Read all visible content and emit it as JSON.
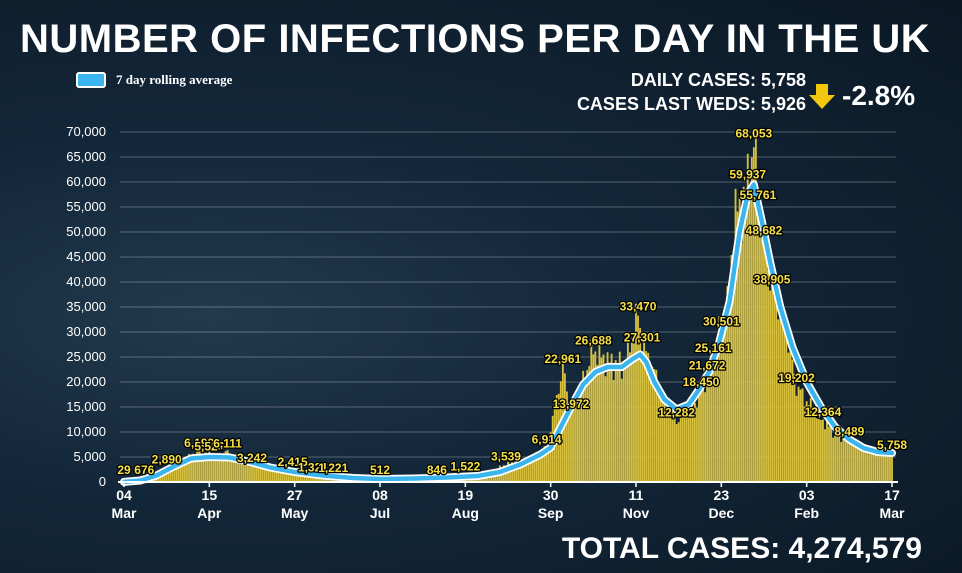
{
  "title": "NUMBER OF INFECTIONS PER DAY IN THE UK",
  "legend": {
    "label": "7 day rolling average",
    "color": "#3ab4ec"
  },
  "stats": {
    "daily": "DAILY CASES: 5,758",
    "last_weds": "CASES LAST WEDS: 5,926",
    "change": "-2.8%",
    "arrow_color": "#f2c80f",
    "arrow_icon": "arrow-down-icon"
  },
  "total": "TOTAL CASES: 4,274,579",
  "colors": {
    "bars": "#d8c13f",
    "avg_line": "#3ab4ec",
    "labels": "#f5e04a"
  },
  "chart_data": {
    "type": "bar",
    "ylim": [
      0,
      70000
    ],
    "y_ticks": [
      0,
      5000,
      10000,
      15000,
      20000,
      25000,
      30000,
      35000,
      40000,
      45000,
      50000,
      55000,
      60000,
      65000,
      70000
    ],
    "y_tick_labels": [
      "0",
      "5,000",
      "10,000",
      "15,000",
      "20,000",
      "25,000",
      "30,000",
      "35,000",
      "40,000",
      "45,000",
      "50,000",
      "55,000",
      "60,000",
      "65,000",
      "70,000"
    ],
    "grid": true,
    "x_ticks": [
      {
        "date": "2020-03-04",
        "day": "04",
        "month": "Mar"
      },
      {
        "date": "2020-04-15",
        "day": "15",
        "month": "Apr"
      },
      {
        "date": "2020-05-27",
        "day": "27",
        "month": "May"
      },
      {
        "date": "2020-07-08",
        "day": "08",
        "month": "Jul"
      },
      {
        "date": "2020-08-19",
        "day": "19",
        "month": "Aug"
      },
      {
        "date": "2020-09-30",
        "day": "30",
        "month": "Sep"
      },
      {
        "date": "2020-11-11",
        "day": "11",
        "month": "Nov"
      },
      {
        "date": "2020-12-23",
        "day": "23",
        "month": "Dec"
      },
      {
        "date": "2021-02-03",
        "day": "03",
        "month": "Feb"
      },
      {
        "date": "2021-03-17",
        "day": "17",
        "month": "Mar"
      }
    ],
    "daily_key_points": [
      [
        "2020-03-04",
        29
      ],
      [
        "2020-03-08",
        80
      ],
      [
        "2020-03-14",
        676
      ],
      [
        "2020-03-20",
        1800
      ],
      [
        "2020-03-25",
        2890
      ],
      [
        "2020-04-03",
        4500
      ],
      [
        "2020-04-10",
        6199
      ],
      [
        "2020-04-15",
        5526
      ],
      [
        "2020-04-20",
        4700
      ],
      [
        "2020-04-24",
        6111
      ],
      [
        "2020-05-01",
        4400
      ],
      [
        "2020-05-06",
        3242
      ],
      [
        "2020-05-15",
        2800
      ],
      [
        "2020-05-26",
        2415
      ],
      [
        "2020-06-05",
        1321
      ],
      [
        "2020-06-15",
        1221
      ],
      [
        "2020-07-08",
        512
      ],
      [
        "2020-08-05",
        846
      ],
      [
        "2020-08-19",
        1522
      ],
      [
        "2020-09-01",
        2000
      ],
      [
        "2020-09-08",
        3539
      ],
      [
        "2020-09-20",
        4500
      ],
      [
        "2020-09-28",
        6914
      ],
      [
        "2020-10-06",
        22961
      ],
      [
        "2020-10-10",
        13972
      ],
      [
        "2020-10-15",
        19000
      ],
      [
        "2020-10-21",
        26688
      ],
      [
        "2020-10-28",
        24000
      ],
      [
        "2020-11-05",
        23000
      ],
      [
        "2020-11-12",
        33470
      ],
      [
        "2020-11-14",
        27301
      ],
      [
        "2020-11-20",
        22000
      ],
      [
        "2020-11-26",
        15000
      ],
      [
        "2020-12-01",
        12282
      ],
      [
        "2020-12-08",
        14000
      ],
      [
        "2020-12-13",
        18450
      ],
      [
        "2020-12-16",
        21672
      ],
      [
        "2020-12-19",
        25161
      ],
      [
        "2020-12-23",
        30501
      ],
      [
        "2020-12-27",
        36000
      ],
      [
        "2020-12-29",
        53000
      ],
      [
        "2021-01-02",
        55000
      ],
      [
        "2021-01-05",
        59937
      ],
      [
        "2021-01-08",
        68053
      ],
      [
        "2021-01-10",
        55761
      ],
      [
        "2021-01-13",
        48682
      ],
      [
        "2021-01-17",
        38905
      ],
      [
        "2021-01-24",
        30000
      ],
      [
        "2021-01-29",
        19202
      ],
      [
        "2021-02-05",
        15000
      ],
      [
        "2021-02-11",
        12364
      ],
      [
        "2021-02-18",
        9500
      ],
      [
        "2021-02-24",
        8489
      ],
      [
        "2021-03-03",
        6500
      ],
      [
        "2021-03-10",
        5900
      ],
      [
        "2021-03-17",
        5758
      ]
    ],
    "rolling_average_points": [
      [
        "2020-03-04",
        30
      ],
      [
        "2020-03-12",
        300
      ],
      [
        "2020-03-20",
        1300
      ],
      [
        "2020-03-28",
        3000
      ],
      [
        "2020-04-06",
        4700
      ],
      [
        "2020-04-15",
        5000
      ],
      [
        "2020-04-25",
        4900
      ],
      [
        "2020-05-05",
        4000
      ],
      [
        "2020-05-15",
        2900
      ],
      [
        "2020-05-27",
        2000
      ],
      [
        "2020-06-10",
        1300
      ],
      [
        "2020-06-25",
        800
      ],
      [
        "2020-07-08",
        600
      ],
      [
        "2020-07-25",
        700
      ],
      [
        "2020-08-10",
        900
      ],
      [
        "2020-08-25",
        1200
      ],
      [
        "2020-09-05",
        2000
      ],
      [
        "2020-09-15",
        3500
      ],
      [
        "2020-09-25",
        5500
      ],
      [
        "2020-09-30",
        6900
      ],
      [
        "2020-10-05",
        11000
      ],
      [
        "2020-10-10",
        15000
      ],
      [
        "2020-10-16",
        19500
      ],
      [
        "2020-10-22",
        22000
      ],
      [
        "2020-10-28",
        23000
      ],
      [
        "2020-11-04",
        23000
      ],
      [
        "2020-11-09",
        24500
      ],
      [
        "2020-11-13",
        25500
      ],
      [
        "2020-11-16",
        24000
      ],
      [
        "2020-11-20",
        20000
      ],
      [
        "2020-11-25",
        16500
      ],
      [
        "2020-12-01",
        14500
      ],
      [
        "2020-12-07",
        15500
      ],
      [
        "2020-12-12",
        18500
      ],
      [
        "2020-12-17",
        22000
      ],
      [
        "2020-12-22",
        28000
      ],
      [
        "2020-12-27",
        36000
      ],
      [
        "2021-01-01",
        50000
      ],
      [
        "2021-01-05",
        57500
      ],
      [
        "2021-01-08",
        59500
      ],
      [
        "2021-01-12",
        52000
      ],
      [
        "2021-01-16",
        44000
      ],
      [
        "2021-01-21",
        35000
      ],
      [
        "2021-01-27",
        27000
      ],
      [
        "2021-02-03",
        20000
      ],
      [
        "2021-02-10",
        15000
      ],
      [
        "2021-02-17",
        11000
      ],
      [
        "2021-02-24",
        8500
      ],
      [
        "2021-03-03",
        6800
      ],
      [
        "2021-03-10",
        6000
      ],
      [
        "2021-03-17",
        5800
      ]
    ],
    "annotations": [
      {
        "date": "2020-03-04",
        "value": 29,
        "label": "29"
      },
      {
        "date": "2020-03-14",
        "value": 676,
        "label": "676"
      },
      {
        "date": "2020-03-25",
        "value": 2890,
        "label": "2,890"
      },
      {
        "date": "2020-04-10",
        "value": 6199,
        "label": "6,199"
      },
      {
        "date": "2020-04-15",
        "value": 5526,
        "label": "5,526"
      },
      {
        "date": "2020-04-24",
        "value": 6111,
        "label": "6,111"
      },
      {
        "date": "2020-05-06",
        "value": 3242,
        "label": "3,242"
      },
      {
        "date": "2020-05-26",
        "value": 2415,
        "label": "2,415"
      },
      {
        "date": "2020-06-05",
        "value": 1321,
        "label": "1,321"
      },
      {
        "date": "2020-06-15",
        "value": 1221,
        "label": "1,221"
      },
      {
        "date": "2020-07-08",
        "value": 512,
        "label": "512"
      },
      {
        "date": "2020-08-05",
        "value": 846,
        "label": "846"
      },
      {
        "date": "2020-08-19",
        "value": 1522,
        "label": "1,522"
      },
      {
        "date": "2020-09-08",
        "value": 3539,
        "label": "3,539"
      },
      {
        "date": "2020-09-28",
        "value": 6914,
        "label": "6,914"
      },
      {
        "date": "2020-10-06",
        "value": 22961,
        "label": "22,961"
      },
      {
        "date": "2020-10-10",
        "value": 13972,
        "label": "13,972"
      },
      {
        "date": "2020-10-21",
        "value": 26688,
        "label": "26,688"
      },
      {
        "date": "2020-11-12",
        "value": 33470,
        "label": "33,470"
      },
      {
        "date": "2020-11-14",
        "value": 27301,
        "label": "27,301"
      },
      {
        "date": "2020-12-01",
        "value": 12282,
        "label": "12,282"
      },
      {
        "date": "2020-12-13",
        "value": 18450,
        "label": "18,450"
      },
      {
        "date": "2020-12-16",
        "value": 21672,
        "label": "21,672"
      },
      {
        "date": "2020-12-19",
        "value": 25161,
        "label": "25,161"
      },
      {
        "date": "2020-12-23",
        "value": 30501,
        "label": "30,501"
      },
      {
        "date": "2021-01-05",
        "value": 59937,
        "label": "59,937"
      },
      {
        "date": "2021-01-08",
        "value": 68053,
        "label": "68,053"
      },
      {
        "date": "2021-01-10",
        "value": 55761,
        "label": "55,761"
      },
      {
        "date": "2021-01-13",
        "value": 48682,
        "label": "48,682"
      },
      {
        "date": "2021-01-17",
        "value": 38905,
        "label": "38,905"
      },
      {
        "date": "2021-01-29",
        "value": 19202,
        "label": "19,202"
      },
      {
        "date": "2021-02-11",
        "value": 12364,
        "label": "12,364"
      },
      {
        "date": "2021-02-24",
        "value": 8489,
        "label": "8,489"
      },
      {
        "date": "2021-03-17",
        "value": 5758,
        "label": "5,758"
      }
    ]
  }
}
